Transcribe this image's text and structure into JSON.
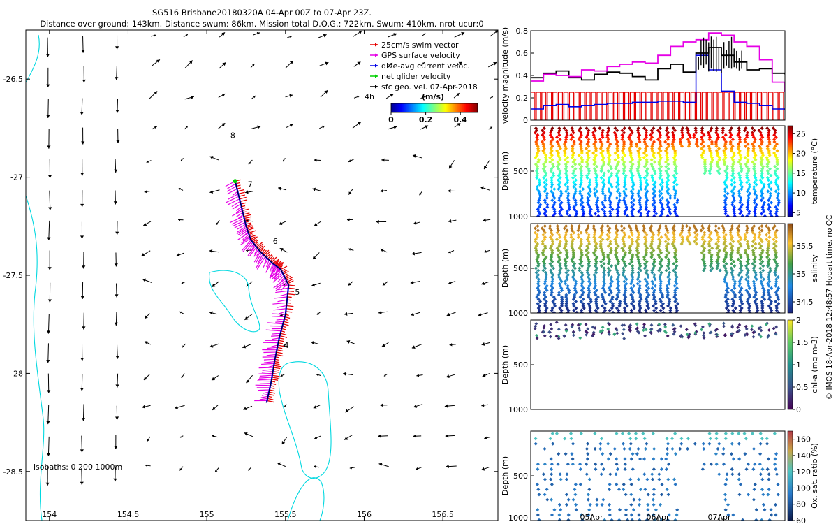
{
  "header": {
    "line1": "SG516 Brisbane20180320A 04-Apr 00Z to 07-Apr 23Z.",
    "line2": "Distance over ground: 143km. Distance swum: 86km. Mission total D.O.G.: 722km. Swum: 410km. nrot ucur:0"
  },
  "side_note": "© IMOS 18-Apr-2018 12:48:57 Hobart time. no QC",
  "chart_data": [
    {
      "type": "scatter",
      "name": "map",
      "xlim": [
        153.85,
        156.85
      ],
      "ylim": [
        -28.75,
        -26.25
      ],
      "x_ticks": [
        154,
        154.5,
        155,
        155.5,
        156,
        156.5
      ],
      "x_tick_labels": [
        "154",
        "154.5",
        "155",
        "155.5",
        "156",
        "156.5"
      ],
      "y_ticks": [
        -26.5,
        -27,
        -27.5,
        -28,
        -28.5
      ],
      "y_tick_labels": [
        "-26.5",
        "-27",
        "-27.5",
        "-28",
        "-28.5"
      ],
      "legend": {
        "position": "top-right",
        "entries": [
          {
            "label": "25cm/s swim vector",
            "color": "#e60000"
          },
          {
            "label": "GPS surface velocity",
            "color": "#e600e6"
          },
          {
            "label": "dive-avg current veloc.",
            "color": "#0000e6"
          },
          {
            "label": "net glider velocity",
            "color": "#00d000"
          },
          {
            "label": "sfc geo. vel. 07-Apr-2018",
            "color": "#000000"
          }
        ]
      },
      "vector_label": "4h",
      "colorbar": {
        "title": "(m/s)",
        "ticks": [
          0,
          0.2,
          0.4
        ],
        "tick_labels": [
          "0",
          "0.2",
          "0.4"
        ],
        "range": [
          0,
          0.5
        ]
      },
      "track": {
        "x": [
          155.18,
          155.22,
          155.25,
          155.28,
          155.34,
          155.42,
          155.47,
          155.52,
          155.5,
          155.46,
          155.43,
          155.41,
          155.38
        ],
        "y": [
          -27.02,
          -27.15,
          -27.25,
          -27.32,
          -27.38,
          -27.44,
          -27.47,
          -27.55,
          -27.7,
          -27.82,
          -27.94,
          -28.04,
          -28.15
        ]
      },
      "day_markers": [
        {
          "label": "8",
          "x": 155.15,
          "y": -26.8
        },
        {
          "label": "7",
          "x": 155.26,
          "y": -27.05
        },
        {
          "label": "6",
          "x": 155.42,
          "y": -27.34
        },
        {
          "label": "5",
          "x": 155.56,
          "y": -27.6
        },
        {
          "label": "4",
          "x": 155.49,
          "y": -27.87
        }
      ],
      "isobath_note": "isobaths: 0  200  1000m"
    },
    {
      "type": "line",
      "name": "velocity",
      "ylabel": "velocity magnitude (m/s)",
      "ylim": [
        0,
        0.8
      ],
      "y_ticks": [
        0,
        0.2,
        0.4,
        0.6,
        0.8
      ],
      "y_tick_labels": [
        "0",
        "0.2",
        "0.4",
        "0.6",
        "0.8"
      ],
      "xlim": [
        0,
        4
      ],
      "series": [
        {
          "color": "#000000",
          "x": [
            0,
            0.2,
            0.4,
            0.6,
            0.8,
            1.0,
            1.2,
            1.4,
            1.6,
            1.8,
            2.0,
            2.2,
            2.4,
            2.6,
            2.8,
            3.0,
            3.2,
            3.4,
            3.6,
            3.8,
            4.0
          ],
          "values": [
            0.38,
            0.42,
            0.44,
            0.38,
            0.36,
            0.41,
            0.43,
            0.42,
            0.39,
            0.36,
            0.46,
            0.5,
            0.43,
            0.6,
            0.65,
            0.58,
            0.52,
            0.45,
            0.46,
            0.42,
            0.41
          ]
        },
        {
          "color": "#e600e6",
          "x": [
            0,
            0.2,
            0.4,
            0.6,
            0.8,
            1.0,
            1.2,
            1.4,
            1.6,
            1.8,
            2.0,
            2.2,
            2.4,
            2.6,
            2.8,
            3.0,
            3.2,
            3.4,
            3.6,
            3.8,
            4.0
          ],
          "values": [
            0.35,
            0.41,
            0.4,
            0.39,
            0.45,
            0.44,
            0.48,
            0.5,
            0.52,
            0.51,
            0.58,
            0.66,
            0.7,
            0.72,
            0.78,
            0.76,
            0.7,
            0.66,
            0.54,
            0.34,
            0.25
          ]
        },
        {
          "color": "#0000e6",
          "x": [
            0,
            0.2,
            0.4,
            0.6,
            0.8,
            1.0,
            1.2,
            1.4,
            1.6,
            1.8,
            2.0,
            2.2,
            2.4,
            2.6,
            2.8,
            3.0,
            3.2,
            3.4,
            3.6,
            3.8,
            4.0
          ],
          "values": [
            0.1,
            0.13,
            0.14,
            0.12,
            0.13,
            0.14,
            0.15,
            0.15,
            0.16,
            0.16,
            0.17,
            0.17,
            0.16,
            0.58,
            0.45,
            0.26,
            0.16,
            0.15,
            0.13,
            0.1,
            0.09
          ]
        },
        {
          "color": "#e60000",
          "swim_speed": 0.25
        }
      ]
    },
    {
      "type": "scatter",
      "name": "temperature",
      "ylabel": "Depth (m)",
      "ylim": [
        1000,
        0
      ],
      "y_ticks": [
        500,
        1000
      ],
      "y_tick_labels": [
        "500",
        "1000"
      ],
      "colorbar": {
        "label": "temperature (°C)",
        "ticks": [
          5,
          10,
          15,
          20,
          25
        ],
        "tick_labels": [
          "5",
          "10",
          "15",
          "20",
          "25"
        ],
        "range": [
          4,
          27
        ]
      }
    },
    {
      "type": "scatter",
      "name": "salinity",
      "ylabel": "Depth (m)",
      "ylim": [
        1000,
        0
      ],
      "y_ticks": [
        500,
        1000
      ],
      "y_tick_labels": [
        "500",
        "1000"
      ],
      "colorbar": {
        "label": "salinity",
        "ticks": [
          34.5,
          35,
          35.5
        ],
        "tick_labels": [
          "34.5",
          "35",
          "35.5"
        ],
        "range": [
          34.3,
          35.9
        ]
      }
    },
    {
      "type": "scatter",
      "name": "chla",
      "ylabel": "Depth (m)",
      "ylim": [
        1000,
        0
      ],
      "y_ticks": [
        500,
        1000
      ],
      "y_tick_labels": [
        "500",
        "1000"
      ],
      "colorbar": {
        "label": "chl-a (mg m-3)",
        "ticks": [
          0,
          0.5,
          1,
          1.5,
          2
        ],
        "tick_labels": [
          "0",
          "0.5",
          "1",
          "1.5",
          "2"
        ],
        "range": [
          0,
          2
        ]
      }
    },
    {
      "type": "scatter",
      "name": "oxygen",
      "ylabel": "Depth (m)",
      "ylim": [
        1000,
        0
      ],
      "y_ticks": [
        500,
        1000
      ],
      "y_tick_labels": [
        "500",
        "1000"
      ],
      "x_tick_labels": [
        "05Apr",
        "06Apr",
        "07Apr"
      ],
      "colorbar": {
        "label": "Ox. sat. ratio (%)",
        "ticks": [
          60,
          80,
          100,
          120,
          140,
          160
        ],
        "tick_labels": [
          "60",
          "80",
          "100",
          "120",
          "140",
          "160"
        ],
        "range": [
          60,
          170
        ]
      }
    }
  ]
}
